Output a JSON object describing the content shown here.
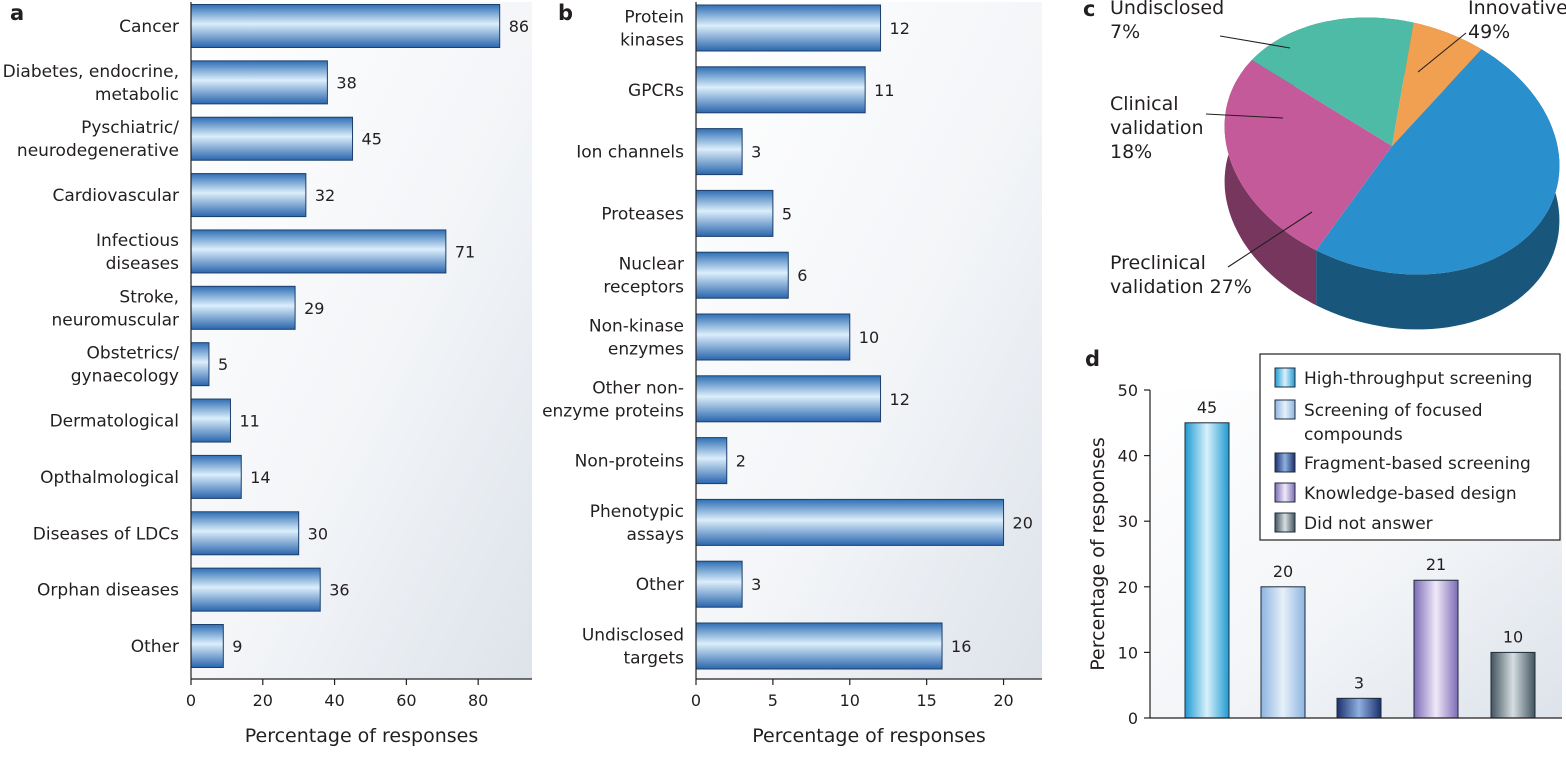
{
  "colors": {
    "bar_main": "#4a8fd4",
    "bar_light": "#dbeefb",
    "bar_stroke": "#1d3f6b",
    "panel_bg": "#e9edf2",
    "pie_innovative": "#2a8fcd",
    "pie_preclinical": "#c55a9b",
    "pie_clinical": "#4dbba5",
    "pie_undisclosed": "#f0a050",
    "hts": "#45b6e2",
    "focused": "#a7c8ea",
    "fragment": "#2c4d96",
    "knowledge": "#9d8cca",
    "no_answer": "#6a7f8a"
  },
  "chart_data": [
    {
      "panel": "a",
      "type": "bar",
      "orientation": "horizontal",
      "categories": [
        [
          "Cancer"
        ],
        [
          "Diabetes, endocrine,",
          "metabolic"
        ],
        [
          "Pyschiatric/",
          "neurodegenerative"
        ],
        [
          "Cardiovascular"
        ],
        [
          "Infectious",
          "diseases"
        ],
        [
          "Stroke,",
          "neuromuscular"
        ],
        [
          "Obstetrics/",
          "gynaecology"
        ],
        [
          "Dermatological"
        ],
        [
          "Opthalmological"
        ],
        [
          "Diseases of LDCs"
        ],
        [
          "Orphan diseases"
        ],
        [
          "Other"
        ]
      ],
      "values": [
        86,
        38,
        45,
        32,
        71,
        29,
        5,
        11,
        14,
        30,
        36,
        9
      ],
      "value_labels": [
        "86",
        "38",
        "45",
        "32",
        "71",
        "29",
        "5",
        "11",
        "14",
        "30",
        "36",
        "9"
      ],
      "xlim": [
        0,
        95
      ],
      "xticks": [
        0,
        20,
        40,
        60,
        80
      ],
      "xtick_labels": [
        "0",
        "20",
        "40",
        "60",
        "80"
      ],
      "xlabel": "Percentage of responses"
    },
    {
      "panel": "b",
      "type": "bar",
      "orientation": "horizontal",
      "categories": [
        [
          "Protein",
          "kinases"
        ],
        [
          "GPCRs"
        ],
        [
          "Ion channels"
        ],
        [
          "Proteases"
        ],
        [
          "Nuclear",
          "receptors"
        ],
        [
          "Non-kinase",
          "enzymes"
        ],
        [
          "Other non-",
          "enzyme proteins"
        ],
        [
          "Non-proteins"
        ],
        [
          "Phenotypic",
          "assays"
        ],
        [
          "Other"
        ],
        [
          "Undisclosed",
          "targets"
        ]
      ],
      "values": [
        12,
        11,
        3,
        5,
        6,
        10,
        12,
        2,
        20,
        3,
        16
      ],
      "value_labels": [
        "12",
        "11",
        "3",
        "5",
        "6",
        "10",
        "12",
        "2",
        "20",
        "3",
        "16"
      ],
      "xlim": [
        0,
        22.5
      ],
      "xticks": [
        0,
        5,
        10,
        15,
        20
      ],
      "xtick_labels": [
        "0",
        "5",
        "10",
        "15",
        "20"
      ],
      "xlabel": "Percentage of responses"
    },
    {
      "panel": "c",
      "type": "pie",
      "slices": [
        {
          "label": "Innovative",
          "value": 49,
          "value_label": "49%"
        },
        {
          "label": "Preclinical validation",
          "value": 27,
          "value_label": "27%"
        },
        {
          "label": "Clinical validation",
          "value": 18,
          "value_label": "18%"
        },
        {
          "label": "Undisclosed",
          "value": 7,
          "value_label": "7%"
        }
      ],
      "label_lines": [
        [
          "Innovative",
          "49%"
        ],
        [
          "Preclinical",
          "validation 27%"
        ],
        [
          "Clinical",
          "validation",
          "18%"
        ],
        [
          "Undisclosed",
          "7%"
        ]
      ]
    },
    {
      "panel": "d",
      "type": "bar",
      "orientation": "vertical",
      "categories": [
        "High-throughput screening",
        "Screening of focused compounds",
        "Fragment-based screening",
        "Knowledge-based design",
        "Did not answer"
      ],
      "values": [
        45,
        20,
        3,
        21,
        10
      ],
      "value_labels": [
        "45",
        "20",
        "3",
        "21",
        "10"
      ],
      "ylim": [
        0,
        50
      ],
      "yticks": [
        0,
        10,
        20,
        30,
        40,
        50
      ],
      "ytick_labels": [
        "0",
        "10",
        "20",
        "30",
        "40",
        "50"
      ],
      "ylabel": "Percentage of responses",
      "legend": {
        "placement": "top-right",
        "entries": [
          [
            "High-throughput screening"
          ],
          [
            "Screening of focused",
            "compounds"
          ],
          [
            "Fragment-based screening"
          ],
          [
            "Knowledge-based design"
          ],
          [
            "Did not answer"
          ]
        ]
      }
    }
  ]
}
